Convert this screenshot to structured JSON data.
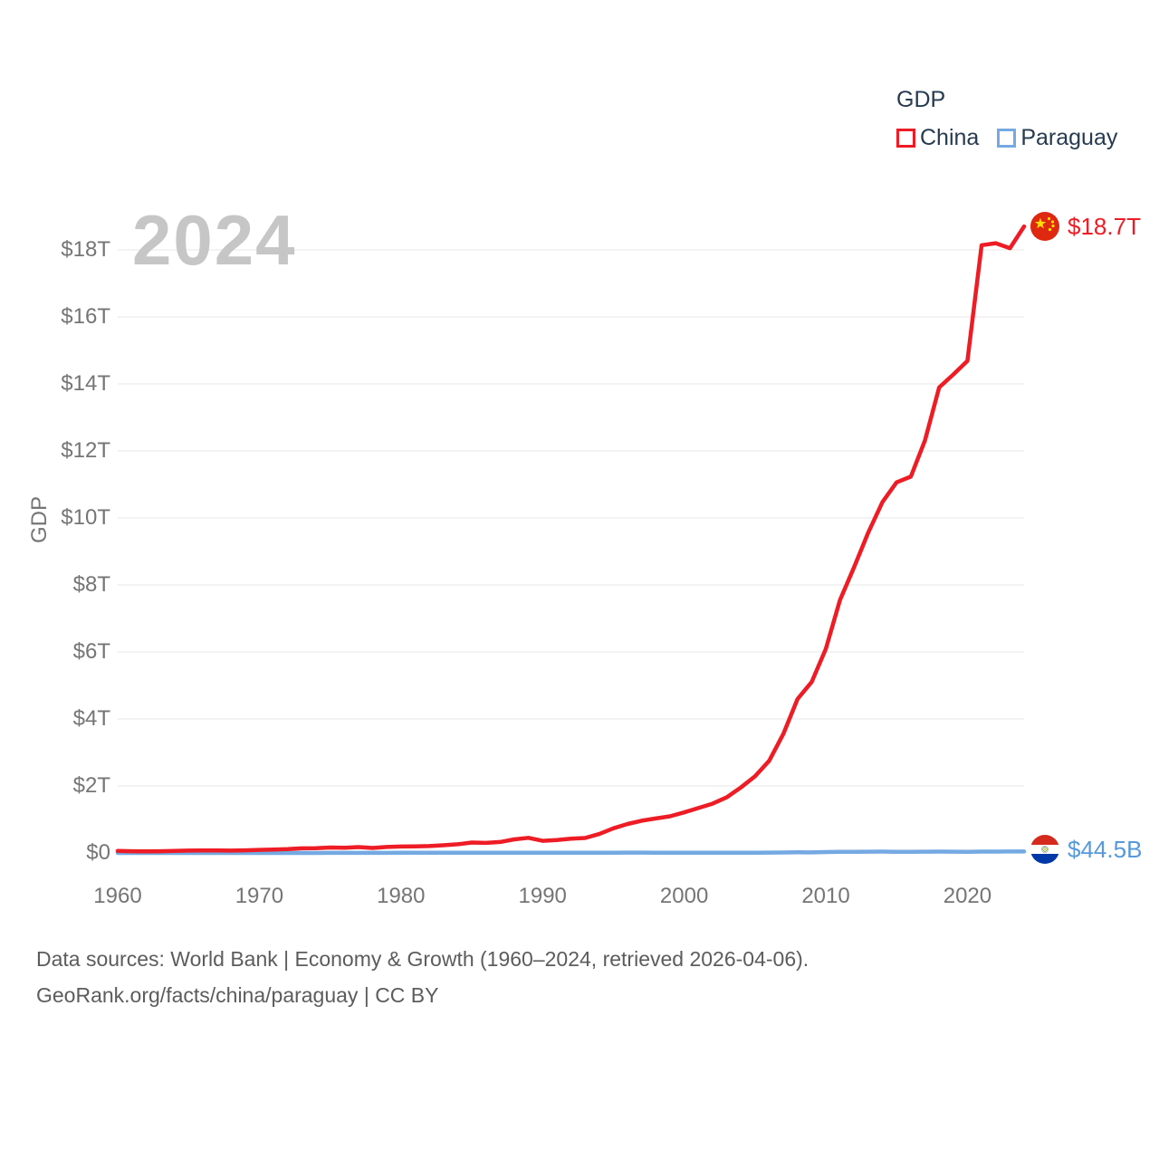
{
  "watermark": "2024",
  "legend": {
    "title": "GDP",
    "series": [
      {
        "label": "China",
        "color": "#ee1c25"
      },
      {
        "label": "Paraguay",
        "color": "#74aae1"
      }
    ]
  },
  "axes": {
    "y_title": "GDP",
    "y_ticks": [
      "$0",
      "$2T",
      "$4T",
      "$6T",
      "$8T",
      "$10T",
      "$12T",
      "$14T",
      "$16T",
      "$18T"
    ],
    "x_ticks": [
      "1960",
      "1970",
      "1980",
      "1990",
      "2000",
      "2010",
      "2020"
    ]
  },
  "end_labels": [
    {
      "series": "China",
      "value": "$18.7T",
      "color": "#ee1c25",
      "flag": "china-flag-icon"
    },
    {
      "series": "Paraguay",
      "value": "$44.5B",
      "color": "#5699dc",
      "flag": "paraguay-flag-icon"
    }
  ],
  "footer": {
    "line1": "Data sources: World Bank | Economy & Growth (1960–2024, retrieved 2026-04-06).",
    "line2": "GeoRank.org/facts/china/paraguay | CC BY"
  },
  "colors": {
    "china_line": "#ee1c25",
    "paraguay_line": "#74aae1",
    "paraguay_value_text": "#5699dc",
    "legend_text": "#263b50",
    "axis_text": "#757575",
    "watermark": "#c6c6c6",
    "footer_text": "#5c5c5c",
    "gridline": "#ececec"
  },
  "chart_data": {
    "type": "line",
    "title": "GDP",
    "ylabel": "GDP",
    "unit": "current US$ (billions)",
    "xlim": [
      1960,
      2024
    ],
    "ylim_billions": [
      0,
      19000
    ],
    "grid": true,
    "legend_position": "top-right",
    "x": [
      1960,
      1961,
      1962,
      1963,
      1964,
      1965,
      1966,
      1967,
      1968,
      1969,
      1970,
      1971,
      1972,
      1973,
      1974,
      1975,
      1976,
      1977,
      1978,
      1979,
      1980,
      1981,
      1982,
      1983,
      1984,
      1985,
      1986,
      1987,
      1988,
      1989,
      1990,
      1991,
      1992,
      1993,
      1994,
      1995,
      1996,
      1997,
      1998,
      1999,
      2000,
      2001,
      2002,
      2003,
      2004,
      2005,
      2006,
      2007,
      2008,
      2009,
      2010,
      2011,
      2012,
      2013,
      2014,
      2015,
      2016,
      2017,
      2018,
      2019,
      2020,
      2021,
      2022,
      2023,
      2024
    ],
    "series": [
      {
        "name": "China",
        "values_billions": [
          59.7,
          50.1,
          47.2,
          50.7,
          59.7,
          70.4,
          76.7,
          72.9,
          70.8,
          79.7,
          92.6,
          99.8,
          113.7,
          138.5,
          144.2,
          163.4,
          153.9,
          174.9,
          149.5,
          178.3,
          191.1,
          195.9,
          205.1,
          230.7,
          259.9,
          309.5,
          300.8,
          327.0,
          404.1,
          451.3,
          360.9,
          383.4,
          426.9,
          444.7,
          564.3,
          734.5,
          863.7,
          961.6,
          1029.0,
          1094.0,
          1211.3,
          1339.4,
          1470.6,
          1660.3,
          1955.3,
          2286.0,
          2752.1,
          3550.3,
          4594.3,
          5101.7,
          6087.2,
          7551.5,
          8532.2,
          9570.4,
          10475.7,
          11061.6,
          11233.3,
          12310.4,
          13894.8,
          14280.0,
          14687.7,
          18140.0,
          18200.0,
          18050.0,
          18700.0
        ]
      },
      {
        "name": "Paraguay",
        "values_billions": [
          0.37,
          0.4,
          0.42,
          0.45,
          0.49,
          0.44,
          0.48,
          0.51,
          0.55,
          0.58,
          0.66,
          0.71,
          0.78,
          1.03,
          1.34,
          1.51,
          1.7,
          2.05,
          2.53,
          3.44,
          4.45,
          5.62,
          5.42,
          5.26,
          4.36,
          4.19,
          4.79,
          4.55,
          5.34,
          5.44,
          5.26,
          6.25,
          6.45,
          6.88,
          7.87,
          9.1,
          9.7,
          9.6,
          9.14,
          8.6,
          8.88,
          8.12,
          6.33,
          6.59,
          8.03,
          8.74,
          10.65,
          13.79,
          18.5,
          15.93,
          27.1,
          33.61,
          33.2,
          38.73,
          40.28,
          36.16,
          36.05,
          38.97,
          40.23,
          37.93,
          35.43,
          39.95,
          41.72,
          42.82,
          44.5
        ]
      }
    ],
    "end_annotations": [
      {
        "series": "China",
        "label": "$18.7T"
      },
      {
        "series": "Paraguay",
        "label": "$44.5B"
      }
    ]
  }
}
